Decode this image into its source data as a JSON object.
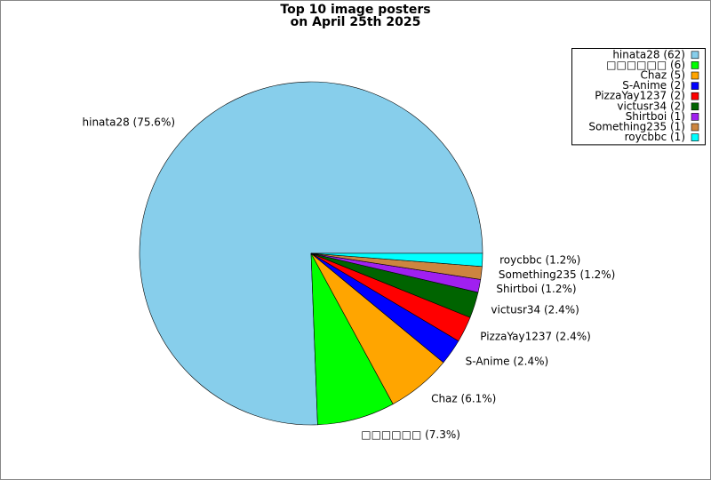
{
  "chart_data": {
    "type": "pie",
    "title": [
      "Top 10 image posters",
      "on April 25th 2025"
    ],
    "legend_labels": [
      "hinata28 (62)",
      "□□□□□□ (6)",
      "Chaz (5)",
      "S-Anime (2)",
      "PizzaYay1237 (2)",
      "victusr34 (2)",
      "Shirtboi (1)",
      "Something235 (1)",
      "roycbbc (1)"
    ],
    "slice_labels": [
      "hinata28 (75.6%)",
      "□□□□□□ (7.3%)",
      "Chaz (6.1%)",
      "S-Anime (2.4%)",
      "PizzaYay1237 (2.4%)",
      "victusr34 (2.4%)",
      "Shirtboi (1.2%)",
      "Something235 (1.2%)",
      "roycbbc (1.2%)"
    ],
    "values": [
      62,
      6,
      5,
      2,
      2,
      2,
      1,
      1,
      1
    ],
    "colors": [
      "#87ceeb",
      "#00ff00",
      "#ffa500",
      "#0000ff",
      "#ff0000",
      "#006400",
      "#a020f0",
      "#cd853f",
      "#00ffff"
    ],
    "legend": "upper right"
  }
}
